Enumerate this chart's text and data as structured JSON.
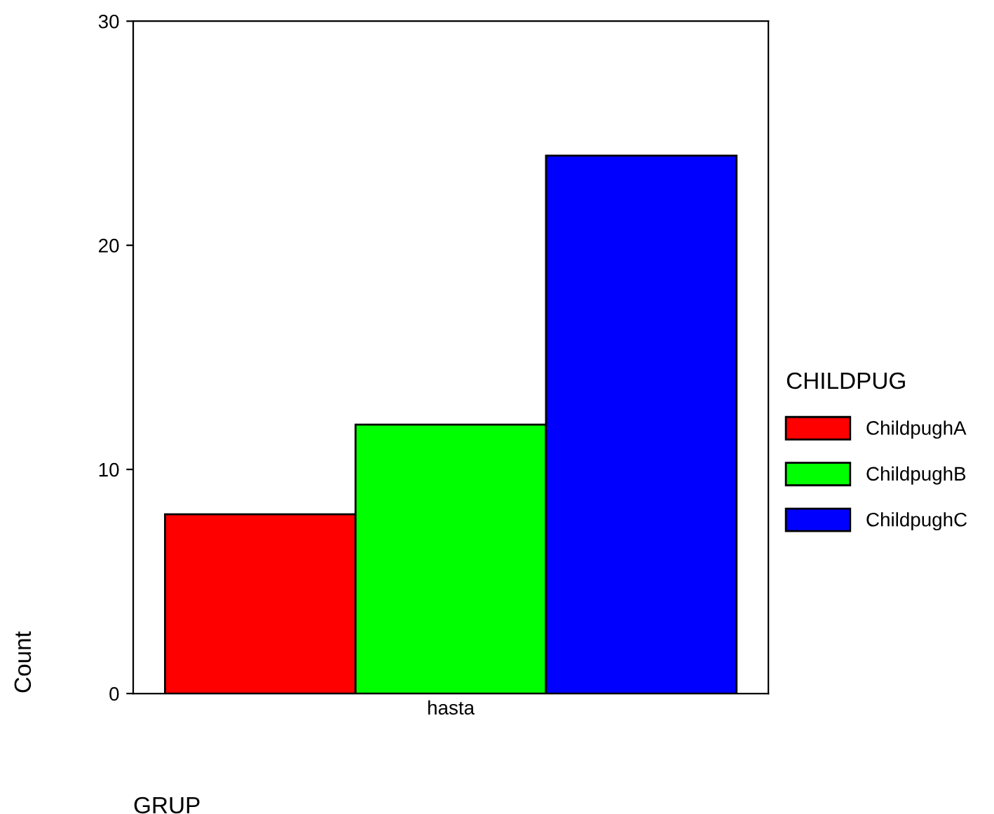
{
  "chart_data": {
    "type": "bar",
    "xlabel": "GRUP",
    "ylabel": "Count",
    "legend_title": "CHILDPUG",
    "categories": [
      "hasta"
    ],
    "series": [
      {
        "name": "ChildpughA",
        "color": "#ff0000",
        "values": [
          8
        ]
      },
      {
        "name": "ChildpughB",
        "color": "#00ff00",
        "values": [
          12
        ]
      },
      {
        "name": "ChildpughC",
        "color": "#0000ff",
        "values": [
          24
        ]
      }
    ],
    "ylim": [
      0,
      30
    ],
    "yticks": [
      0,
      10,
      20,
      30
    ],
    "grid": false,
    "legend": "right"
  }
}
